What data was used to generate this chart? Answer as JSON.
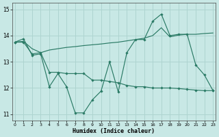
{
  "xlabel": "Humidex (Indice chaleur)",
  "xlim": [
    -0.3,
    23.3
  ],
  "ylim": [
    10.75,
    15.25
  ],
  "yticks": [
    11,
    12,
    13,
    14,
    15
  ],
  "xticks": [
    0,
    1,
    2,
    3,
    4,
    5,
    6,
    7,
    8,
    9,
    10,
    11,
    12,
    13,
    14,
    15,
    16,
    17,
    18,
    19,
    20,
    21,
    22,
    23
  ],
  "line_color": "#2a7a65",
  "bg_color": "#c8e8e5",
  "grid_color": "#aed4d0",
  "line1_y": [
    13.75,
    13.88,
    13.25,
    13.3,
    12.05,
    12.55,
    12.05,
    11.05,
    11.05,
    11.55,
    11.88,
    13.0,
    11.85,
    13.35,
    13.85,
    13.85,
    14.55,
    14.82,
    14.0,
    14.05,
    14.05,
    12.88,
    12.5,
    11.9
  ],
  "line2_x": [
    0,
    1,
    2,
    3,
    4,
    5,
    6,
    7,
    8,
    9,
    10,
    11,
    12,
    13,
    14,
    15,
    16,
    17,
    18,
    19,
    20,
    21,
    22,
    23
  ],
  "line2_y": [
    13.75,
    13.75,
    13.3,
    13.35,
    12.6,
    12.6,
    12.55,
    12.55,
    12.55,
    12.3,
    12.3,
    12.25,
    12.2,
    12.1,
    12.05,
    12.05,
    12.0,
    12.0,
    12.0,
    11.98,
    11.95,
    11.92,
    11.9,
    11.9
  ],
  "line3_x": [
    0,
    1,
    2,
    3,
    4,
    5,
    6,
    7,
    8,
    9,
    10,
    11,
    12,
    13,
    14,
    15,
    16,
    17,
    18,
    19,
    20,
    21,
    22,
    23
  ],
  "line3_y": [
    13.75,
    13.78,
    13.5,
    13.35,
    13.45,
    13.5,
    13.55,
    13.58,
    13.62,
    13.65,
    13.68,
    13.72,
    13.75,
    13.8,
    13.85,
    13.9,
    14.0,
    14.3,
    13.95,
    14.02,
    14.05,
    14.05,
    14.08,
    14.1
  ]
}
